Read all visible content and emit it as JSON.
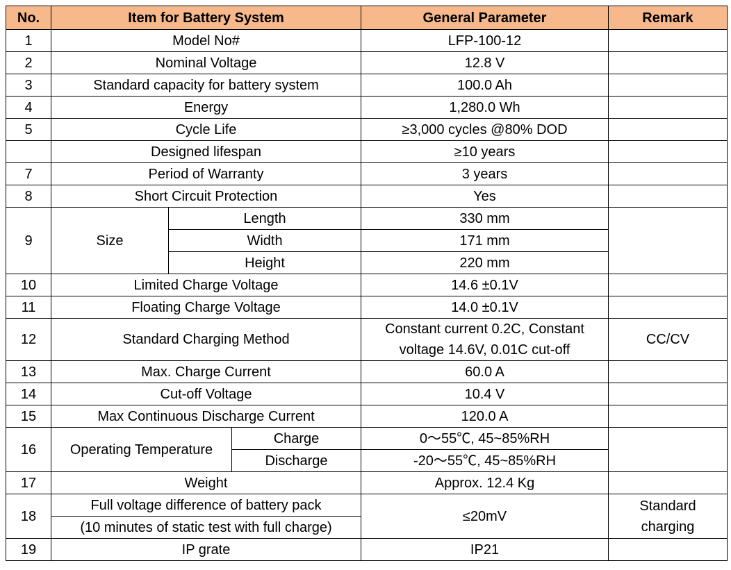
{
  "table": {
    "header": [
      "No.",
      "Item for Battery System",
      "General Parameter",
      "Remark"
    ],
    "rows": [
      {
        "no": "1",
        "item": "Model No#",
        "parameter": "LFP-100-12"
      },
      {
        "no": "2",
        "item": "Nominal Voltage",
        "parameter": "12.8 V"
      },
      {
        "no": "3",
        "item": "Standard capacity for battery system",
        "parameter": "100.0 Ah"
      },
      {
        "no": "4",
        "item": "Energy",
        "parameter": "1,280.0 Wh"
      },
      {
        "no": "5",
        "item": "Cycle Life",
        "parameter": "≥3,000 cycles @80% DOD"
      },
      {
        "item": "Designed lifespan",
        "parameter": "≥10 years"
      },
      {
        "no": "7",
        "item": "Period of Warranty",
        "parameter": "3 years"
      },
      {
        "no": "8",
        "item": "Short Circuit Protection",
        "parameter": "Yes"
      },
      {
        "no": "9",
        "item": "Size",
        "sub": [
          {
            "item": "Length",
            "parameter": "330 mm"
          },
          {
            "item": "Width",
            "parameter": "171 mm"
          },
          {
            "item": "Height",
            "parameter": "220 mm"
          }
        ]
      },
      {
        "no": "10",
        "item": "Limited Charge Voltage",
        "parameter": "14.6 ±0.1V"
      },
      {
        "no": "11",
        "item": "Floating Charge Voltage",
        "parameter": "14.0 ±0.1V"
      },
      {
        "no": "12",
        "item": "Standard Charging Method",
        "parameter": "Constant current 0.2C, Constant voltage 14.6V, 0.01C cut-off",
        "remark": "CC/CV"
      },
      {
        "no": "13",
        "item": "Max. Charge Current",
        "parameter": "60.0 A"
      },
      {
        "no": "14",
        "item": "Cut-off Voltage",
        "parameter": "10.4 V"
      },
      {
        "no": "15",
        "item": "Max Continuous Discharge Current",
        "parameter": "120.0 A"
      },
      {
        "no": "16",
        "item": "Operating Temperature",
        "sub": [
          {
            "item": "Charge",
            "parameter": "0～55℃, 45~85%RH"
          },
          {
            "item": "Discharge",
            "parameter": "-20～55℃, 45~85%RH"
          }
        ]
      },
      {
        "no": "17",
        "item": "Weight",
        "parameter": "Approx. 12.4 Kg"
      },
      {
        "no": "18",
        "item_lines": [
          "Full voltage difference of battery pack",
          "(10 minutes of static test with full charge)"
        ],
        "parameter": "≤20mV",
        "remark": "Standard charging"
      },
      {
        "no": "19",
        "item": "IP grate",
        "parameter": "IP21"
      }
    ]
  }
}
